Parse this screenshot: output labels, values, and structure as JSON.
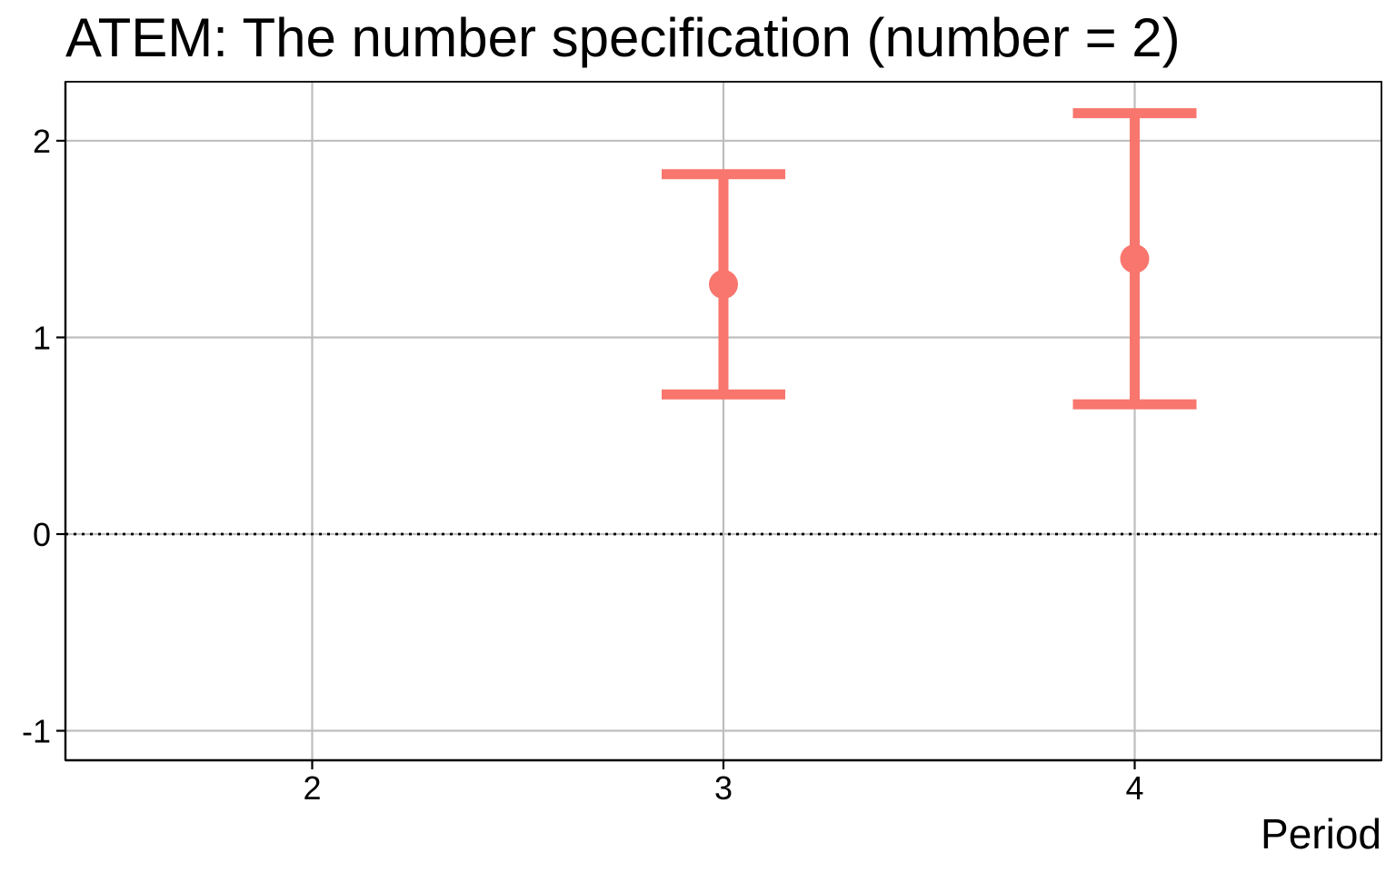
{
  "chart_data": {
    "type": "errorbar",
    "title": "ATEM: The number specification (number = 2)",
    "xlabel": "Period",
    "ylabel": "",
    "xlim": [
      1.4,
      4.6
    ],
    "ylim": [
      -1.15,
      2.3
    ],
    "x_ticks": [
      2,
      3,
      4
    ],
    "y_ticks": [
      -1,
      0,
      1,
      2
    ],
    "x_tick_labels": [
      "2",
      "3",
      "4"
    ],
    "y_tick_labels": [
      "-1",
      "0",
      "1",
      "2"
    ],
    "grid": true,
    "reference_line": {
      "y": 0,
      "style": "dotted"
    },
    "series": [
      {
        "color": "#F8766D",
        "points": [
          {
            "x": 3,
            "estimate": 1.27,
            "lower": 0.71,
            "upper": 1.83
          },
          {
            "x": 4,
            "estimate": 1.4,
            "lower": 0.66,
            "upper": 2.14
          }
        ]
      }
    ],
    "colors": {
      "series": "#F8766D",
      "grid": "#BEBEBE",
      "axis": "#000000",
      "background": "#FFFFFF"
    }
  }
}
